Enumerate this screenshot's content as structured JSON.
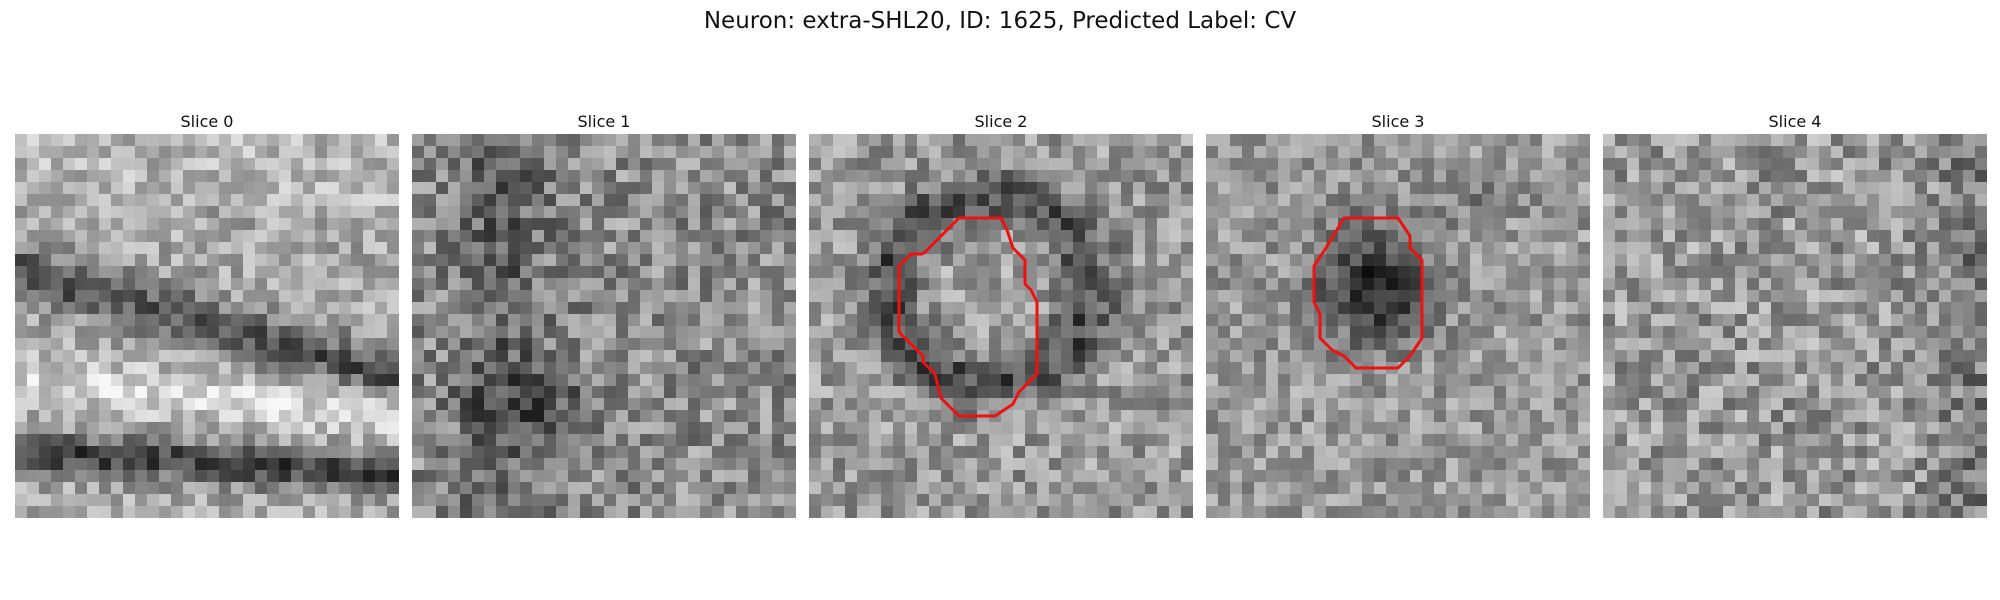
{
  "figure": {
    "title": "Neuron: extra-SHL20, ID: 1625, Predicted Label: CV"
  },
  "panels": [
    {
      "title": "Slice 0",
      "texture": "bands",
      "contour": null
    },
    {
      "title": "Slice 1",
      "texture": "noise-dark-left",
      "contour": null
    },
    {
      "title": "Slice 2",
      "texture": "ring",
      "contour": "slice2"
    },
    {
      "title": "Slice 3",
      "texture": "dark-blob",
      "contour": "slice3"
    },
    {
      "title": "Slice 4",
      "texture": "noise",
      "contour": null
    }
  ],
  "colors": {
    "contour": "#ee1111",
    "background": "#ffffff"
  }
}
